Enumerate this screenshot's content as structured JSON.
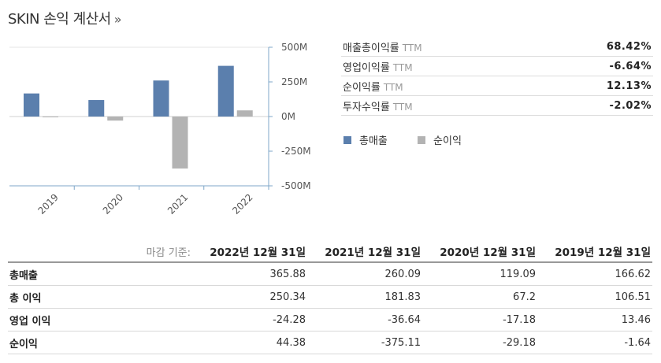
{
  "title": "SKIN 손익 계산서",
  "title_link": "»",
  "ratios": [
    {
      "label": "매출총이익률",
      "ttm": "TTM",
      "value": "68.42%"
    },
    {
      "label": "영업이익률",
      "ttm": "TTM",
      "value": "-6.64%"
    },
    {
      "label": "순이익률",
      "ttm": "TTM",
      "value": "12.13%"
    },
    {
      "label": "투자수익률",
      "ttm": "TTM",
      "value": "-2.02%"
    }
  ],
  "legend": [
    {
      "label": "총매출",
      "color": "#5b7fad"
    },
    {
      "label": "순이익",
      "color": "#b3b3b3"
    }
  ],
  "chart_data": {
    "type": "bar",
    "categories": [
      "2019",
      "2020",
      "2021",
      "2022"
    ],
    "series": [
      {
        "name": "총매출",
        "color": "#5b7fad",
        "values": [
          166.62,
          119.09,
          260.09,
          365.88
        ]
      },
      {
        "name": "순이익",
        "color": "#b3b3b3",
        "values": [
          -1.64,
          -29.18,
          -375.11,
          44.38
        ]
      }
    ],
    "yticks": [
      "500M",
      "250M",
      "0M",
      "-250M",
      "-500M"
    ],
    "ylim": [
      -500,
      500
    ],
    "grid": false,
    "legend_position": "right"
  },
  "table": {
    "basis_label": "마감 기준:",
    "columns": [
      "2022년 12월 31일",
      "2021년 12월 31일",
      "2020년 12월 31일",
      "2019년 12월 31일"
    ],
    "rows": [
      {
        "label": "총매출",
        "values": [
          "365.88",
          "260.09",
          "119.09",
          "166.62"
        ]
      },
      {
        "label": "총 이익",
        "values": [
          "250.34",
          "181.83",
          "67.2",
          "106.51"
        ]
      },
      {
        "label": "영업 이익",
        "values": [
          "-24.28",
          "-36.64",
          "-17.18",
          "13.46"
        ]
      },
      {
        "label": "순이익",
        "values": [
          "44.38",
          "-375.11",
          "-29.18",
          "-1.64"
        ]
      }
    ]
  }
}
